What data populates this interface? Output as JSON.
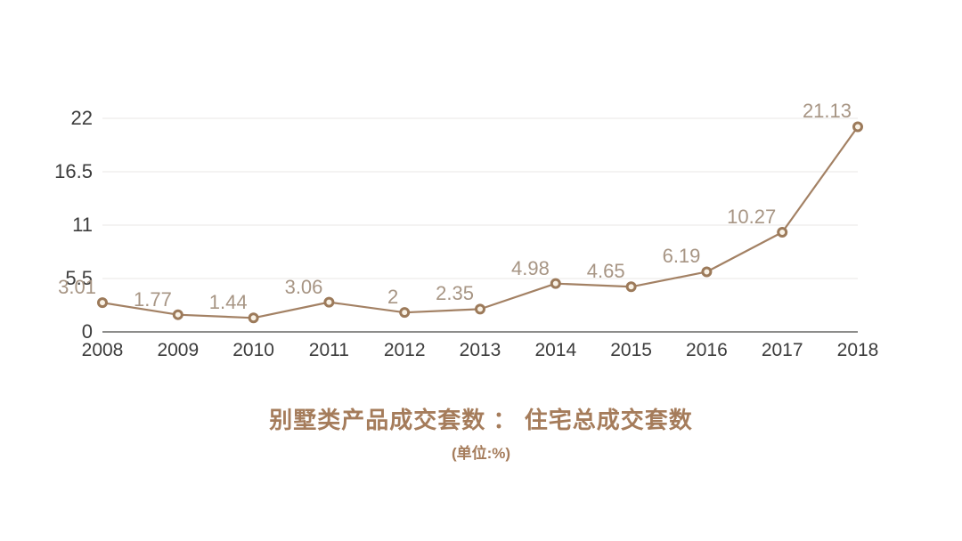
{
  "chart_data": {
    "type": "line",
    "title": "别墅类产品成交套数 ： 住宅总成交套数",
    "subtitle": "(单位:%)",
    "categories": [
      "2008",
      "2009",
      "2010",
      "2011",
      "2012",
      "2013",
      "2014",
      "2015",
      "2016",
      "2017",
      "2018"
    ],
    "values": [
      3.01,
      1.77,
      1.44,
      3.06,
      2,
      2.35,
      4.98,
      4.65,
      6.19,
      10.27,
      21.13
    ],
    "point_labels": [
      "3.01",
      "1.77",
      "1.44",
      "3.06",
      "2",
      "2.35",
      "4.98",
      "4.65",
      "6.19",
      "10.27",
      "21.13"
    ],
    "xlabel": "",
    "ylabel": "",
    "ylim": [
      0,
      22
    ],
    "y_ticks": [
      {
        "value": 0,
        "label": "0"
      },
      {
        "value": 5.5,
        "label": "5.5"
      },
      {
        "value": 11,
        "label": "11"
      },
      {
        "value": 16.5,
        "label": "16.5"
      },
      {
        "value": 22,
        "label": "22"
      }
    ],
    "grid": true,
    "legend_position": "none",
    "colors": {
      "background": "#ffffff",
      "line": "#a38164",
      "marker_stroke": "#9c7a5a",
      "marker_fill": "#f9f2e6",
      "point_label": "#a79584",
      "title": "#a57c5b",
      "axis_text": "#3c3c3c",
      "gridline": "#e9e7e4",
      "axis_line": "#8d8d8b"
    }
  }
}
